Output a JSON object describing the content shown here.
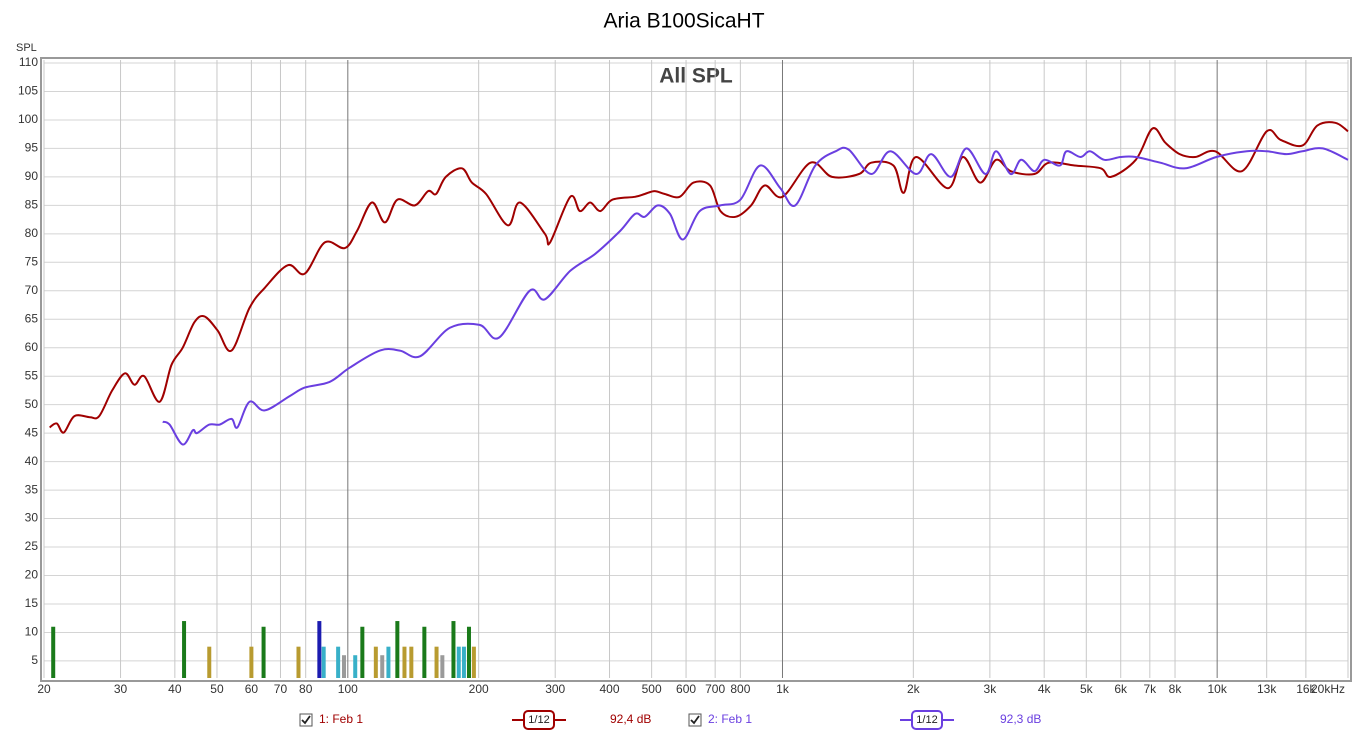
{
  "chart_data": {
    "type": "line",
    "title": "Aria B100SicaHT",
    "annotation": "All SPL",
    "y_label": "SPL",
    "log_x": true,
    "grid": true,
    "xlim": [
      20,
      20000
    ],
    "ylim": [
      2,
      110
    ],
    "xticks": [
      20,
      30,
      40,
      50,
      60,
      70,
      80,
      100,
      200,
      300,
      400,
      500,
      600,
      700,
      800,
      {
        "value": 1000,
        "label": "1k"
      },
      {
        "value": 2000,
        "label": "2k"
      },
      {
        "value": 3000,
        "label": "3k"
      },
      {
        "value": 4000,
        "label": "4k"
      },
      {
        "value": 5000,
        "label": "5k"
      },
      {
        "value": 6000,
        "label": "6k"
      },
      {
        "value": 7000,
        "label": "7k"
      },
      {
        "value": 8000,
        "label": "8k"
      },
      {
        "value": 10000,
        "label": "10k"
      },
      {
        "value": 13000,
        "label": "13k"
      },
      {
        "value": 16000,
        "label": "16k"
      },
      {
        "value": 20000,
        "label": "20kHz"
      }
    ],
    "yticks": [
      5,
      10,
      15,
      20,
      25,
      30,
      35,
      40,
      45,
      50,
      55,
      60,
      65,
      70,
      75,
      80,
      85,
      90,
      95,
      100,
      105,
      110
    ],
    "series": [
      {
        "name": "1: Feb 1",
        "color": "#a00000",
        "smoothing": "1/12",
        "level": 92.4,
        "level_label": "92,4 dB",
        "x": [
          20.6,
          21.4,
          22.2,
          23.5,
          25.5,
          26.8,
          28.7,
          30.7,
          32.3,
          34,
          36.9,
          39.3,
          41.7,
          44.4,
          46.8,
          50.2,
          54,
          59.4,
          64.4,
          72.8,
          79.6,
          88.5,
          98.4,
          105,
          113.6,
          121.7,
          130,
          142.7,
          153,
          159.6,
          168,
          183,
          193,
          208,
          233.4,
          249,
          284,
          292,
          325,
          342,
          361,
          381,
          406,
          458,
          482,
          508,
          536,
          580,
          624,
          681,
          720,
          780,
          847,
          910,
          1000,
          1160,
          1300,
          1500,
          1600,
          1800,
          1900,
          2030,
          2400,
          2600,
          2850,
          3100,
          3350,
          3800,
          4100,
          4700,
          5400,
          5700,
          6500,
          7100,
          7600,
          8200,
          8900,
          9900,
          11400,
          13000,
          14000,
          15700,
          17000,
          18700,
          20000
        ],
        "values": [
          46,
          46.7,
          45.1,
          48,
          47.8,
          48,
          52.5,
          55.5,
          53.5,
          55,
          50.5,
          57,
          60,
          64.5,
          65.5,
          63,
          59.5,
          67,
          70.5,
          74.5,
          73,
          78.5,
          77.5,
          80.5,
          85.5,
          82,
          86,
          85,
          87.5,
          87,
          90,
          91.5,
          89,
          87,
          81.5,
          85.5,
          80,
          78.5,
          86.5,
          84,
          85.5,
          84,
          86,
          86.5,
          87,
          87.5,
          87,
          86.5,
          89,
          88.5,
          84,
          83,
          85,
          88.5,
          86.5,
          92.5,
          90,
          90.5,
          92.5,
          92,
          87.2,
          93.5,
          88,
          93.5,
          89,
          93,
          91,
          90.5,
          92.5,
          92,
          91.5,
          90,
          93,
          98.5,
          96,
          94,
          93.5,
          94.5,
          91,
          98,
          96.5,
          95.5,
          99,
          99.5,
          98
        ]
      },
      {
        "name": "2: Feb 1",
        "color": "#6a3fe0",
        "smoothing": "1/12",
        "level": 92.3,
        "level_label": "92,3 dB",
        "x": [
          37.5,
          38.9,
          41.7,
          44,
          45,
          48,
          50.7,
          54,
          55.7,
          59.4,
          64.4,
          73.5,
          79.6,
          90.8,
          101,
          118.5,
          131.7,
          146.6,
          171.7,
          201,
          223,
          262,
          284,
          325,
          371,
          423,
          458,
          482,
          517,
          551,
          590,
          645,
          720,
          800,
          888,
          989,
          1070,
          1190,
          1325,
          1420,
          1600,
          1770,
          2030,
          2200,
          2440,
          2650,
          2930,
          3100,
          3350,
          3540,
          3800,
          4000,
          4350,
          4500,
          4850,
          5100,
          5500,
          6000,
          6500,
          7400,
          8450,
          9960,
          11700,
          13000,
          14450,
          15700,
          17500,
          20000
        ],
        "values": [
          47,
          46.5,
          43,
          45.5,
          45,
          46.5,
          46.5,
          47.5,
          46,
          50.5,
          49,
          51.5,
          53,
          54,
          56.5,
          59.5,
          59.5,
          58.5,
          63.5,
          64,
          61.8,
          70,
          68.5,
          73.5,
          76.5,
          80.5,
          83.5,
          83,
          85,
          83.5,
          79,
          84,
          85,
          86,
          92,
          88,
          85,
          92,
          94.5,
          94.8,
          90.5,
          94.5,
          90.5,
          94,
          90,
          95,
          90.5,
          94.5,
          90.5,
          93,
          91,
          93,
          92,
          94.5,
          93.5,
          94.5,
          93,
          93.5,
          93.5,
          92.5,
          91.5,
          93.5,
          94.5,
          94.5,
          94,
          94.5,
          95,
          93
        ]
      }
    ],
    "markers": {
      "x": [
        21,
        42,
        48,
        60,
        64,
        77,
        86,
        88,
        95,
        98,
        104,
        108,
        116,
        120,
        124,
        130,
        135,
        140,
        150,
        160,
        165,
        175,
        180,
        185,
        190,
        195
      ],
      "values": [
        11,
        12,
        7.5,
        7.5,
        11,
        7.5,
        12,
        7.5,
        7.5,
        6,
        6,
        11,
        7.5,
        6,
        7.5,
        12,
        7.5,
        7.5,
        11,
        7.5,
        6,
        12,
        7.5,
        7.5,
        11,
        7.5
      ],
      "colors": [
        "#1a7a1a",
        "#1a7a1a",
        "#b89b30",
        "#b89b30",
        "#1a7a1a",
        "#b89b30",
        "#1c1cb0",
        "#38b0c8",
        "#38b0c8",
        "#9a9a9a",
        "#38b0c8",
        "#1a7a1a",
        "#b89b30",
        "#9a9a9a",
        "#38b0c8",
        "#1a7a1a",
        "#b89b30",
        "#b89b30",
        "#1a7a1a",
        "#b89b30",
        "#9a9a9a",
        "#1a7a1a",
        "#38b0c8",
        "#38b0c8",
        "#1a7a1a",
        "#b89b30"
      ]
    }
  }
}
